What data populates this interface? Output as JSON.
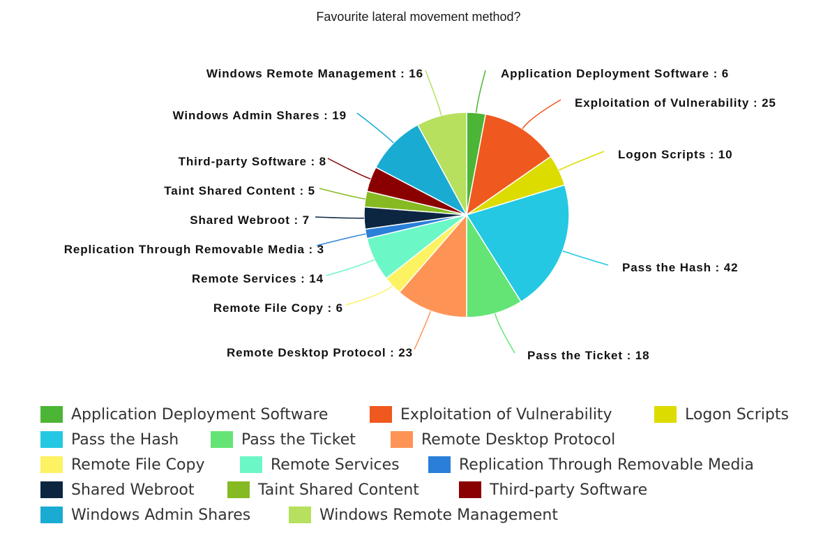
{
  "chart_data": {
    "type": "pie",
    "title": "Favourite lateral movement method?",
    "label_separator": " : ",
    "slices": [
      {
        "label": "Application Deployment Software",
        "value": 6,
        "color": "#4cb535"
      },
      {
        "label": "Exploitation of Vulnerability",
        "value": 25,
        "color": "#ef581e"
      },
      {
        "label": "Logon Scripts",
        "value": 10,
        "color": "#dcdc00"
      },
      {
        "label": "Pass the Hash",
        "value": 42,
        "color": "#24c8e2"
      },
      {
        "label": "Pass the Ticket",
        "value": 18,
        "color": "#64e474"
      },
      {
        "label": "Remote Desktop Protocol",
        "value": 23,
        "color": "#fd9455"
      },
      {
        "label": "Remote File Copy",
        "value": 6,
        "color": "#fdf262"
      },
      {
        "label": "Remote Services",
        "value": 14,
        "color": "#6cf7c7"
      },
      {
        "label": "Replication Through Removable Media",
        "value": 3,
        "color": "#2a7fd9"
      },
      {
        "label": "Shared Webroot",
        "value": 7,
        "color": "#0c2642"
      },
      {
        "label": "Taint Shared Content",
        "value": 5,
        "color": "#86ba22"
      },
      {
        "label": "Third-party Software",
        "value": 8,
        "color": "#8a0000"
      },
      {
        "label": "Windows Admin Shares",
        "value": 19,
        "color": "#1aabd2"
      },
      {
        "label": "Windows Remote Management",
        "value": 16,
        "color": "#b6e05e"
      }
    ],
    "legend": {
      "placement": "bottom"
    }
  }
}
